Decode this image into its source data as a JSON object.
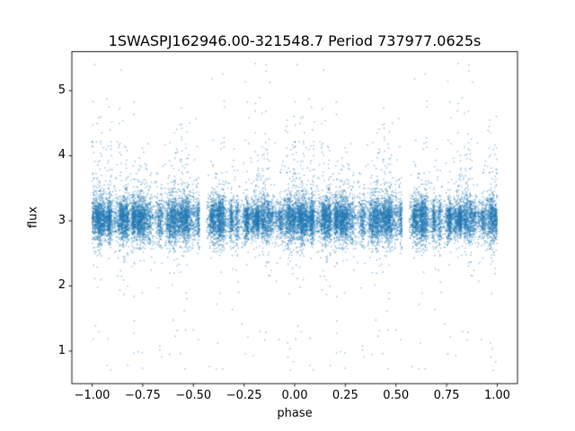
{
  "chart_data": {
    "type": "scatter",
    "title": "1SWASPJ162946.00-321548.7 Period 737977.0625s",
    "xlabel": "phase",
    "ylabel": "flux",
    "xlim": [
      -1.1,
      1.1
    ],
    "ylim": [
      0.5,
      5.6
    ],
    "xticks": [
      {
        "value": -1.0,
        "label": "−1.00"
      },
      {
        "value": -0.75,
        "label": "−0.75"
      },
      {
        "value": -0.5,
        "label": "−0.50"
      },
      {
        "value": -0.25,
        "label": "−0.25"
      },
      {
        "value": 0.0,
        "label": "0.00"
      },
      {
        "value": 0.25,
        "label": "0.25"
      },
      {
        "value": 0.5,
        "label": "0.50"
      },
      {
        "value": 0.75,
        "label": "0.75"
      },
      {
        "value": 1.0,
        "label": "1.00"
      }
    ],
    "yticks": [
      {
        "value": 1,
        "label": "1"
      },
      {
        "value": 2,
        "label": "2"
      },
      {
        "value": 3,
        "label": "3"
      },
      {
        "value": 4,
        "label": "4"
      },
      {
        "value": 5,
        "label": "5"
      }
    ],
    "marker_color": "#1f77b4",
    "marker_alpha": 0.5,
    "marker_size_px": 1.4,
    "grid": false,
    "legend": "none",
    "summary": "Phase-folded light curve plotted over phase −1 to 1 (data duplicated at phase−1). Dense horizontal band of flux about 2.7–3.4 centered near 3.0 across all phases, organized into many narrow vertical columns. Numerous columns show vertical streaks of outliers extending up to flux ≈ 5.4 and down to ≈ 1.5–2.0; rare points fall as low as flux ≈ 0.7. Clear vertical gaps with no data near phase ≈ −0.45 and ≈ +0.55.",
    "point_cloud": {
      "seed": 42,
      "n_columns": 150,
      "n_base": 11000,
      "uniform_frac": 0.18,
      "phase_jitter_sigma": 0.006,
      "band_center": 3.02,
      "core_sigma_range": [
        0.09,
        0.22
      ],
      "upper_tail_fraction": 0.15,
      "lower_tail_fraction": 0.07,
      "extreme_low_fraction": 0.003,
      "flux_min": 0.66,
      "flux_max": 5.45,
      "phase_gaps_base": [
        [
          0.53,
          0.565
        ]
      ]
    }
  }
}
